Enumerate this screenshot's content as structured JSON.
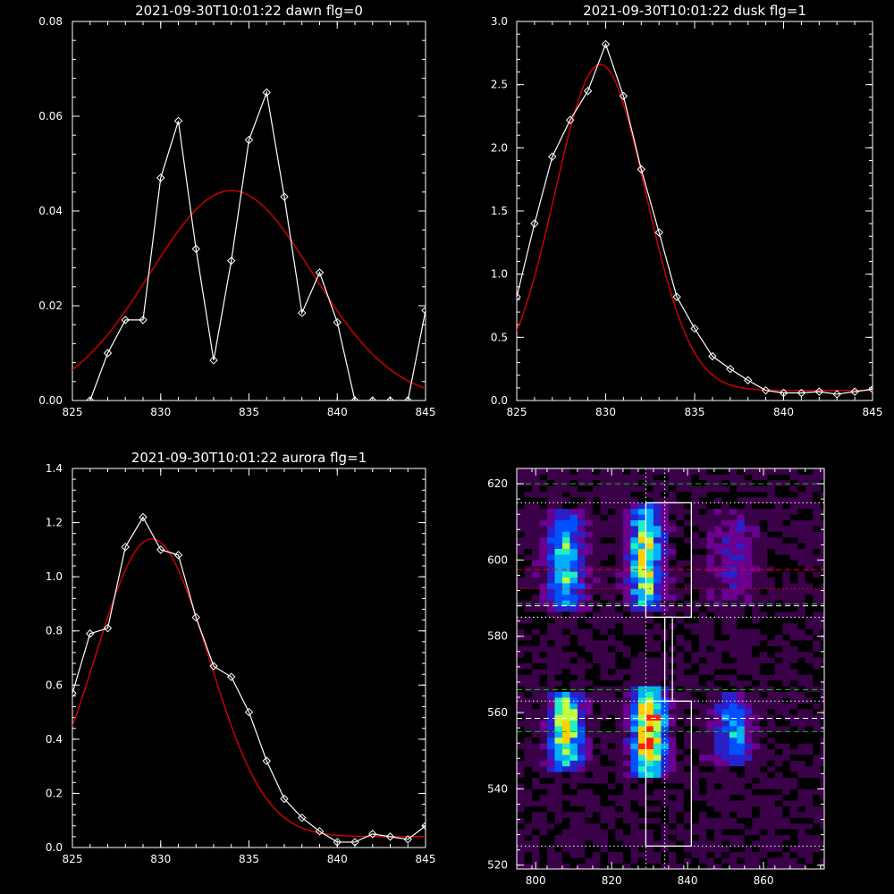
{
  "chart_data": [
    {
      "id": "dawn",
      "type": "line",
      "title": "2021-09-30T10:01:22 dawn flg=0",
      "xlim": [
        825,
        845
      ],
      "ylim": [
        0,
        0.08
      ],
      "xticks": [
        825,
        830,
        835,
        840,
        845
      ],
      "xtick_labels": [
        "825",
        "830",
        "835",
        "840",
        "845"
      ],
      "yticks": [
        0,
        0.02,
        0.04,
        0.06,
        0.08
      ],
      "ytick_labels": [
        "0.00",
        "0.02",
        "0.04",
        "0.06",
        "0.08"
      ],
      "x": [
        826,
        827,
        828,
        829,
        830,
        831,
        832,
        833,
        834,
        835,
        836,
        837,
        838,
        839,
        840,
        841,
        842,
        843,
        844,
        845
      ],
      "y": [
        0.0,
        0.01,
        0.017,
        0.017,
        0.047,
        0.059,
        0.032,
        0.0085,
        0.0295,
        0.055,
        0.065,
        0.043,
        0.0185,
        0.027,
        0.0165,
        0.0,
        0.0,
        0.0,
        0.0,
        0.019
      ],
      "fit": {
        "amplitude": 0.0443,
        "center": 834.0,
        "sigma": 4.6
      },
      "colors": {
        "data": "#ffffff",
        "fit": "#d40000"
      }
    },
    {
      "id": "dusk",
      "type": "line",
      "title": "2021-09-30T10:01:22 dusk flg=1",
      "xlim": [
        825,
        845
      ],
      "ylim": [
        0,
        3.0
      ],
      "xticks": [
        825,
        830,
        835,
        840,
        845
      ],
      "xtick_labels": [
        "825",
        "830",
        "835",
        "840",
        "845"
      ],
      "yticks": [
        0,
        0.5,
        1.0,
        1.5,
        2.0,
        2.5,
        3.0
      ],
      "ytick_labels": [
        "0.0",
        "0.5",
        "1.0",
        "1.5",
        "2.0",
        "2.5",
        "3.0"
      ],
      "x": [
        825,
        826,
        827,
        828,
        829,
        830,
        831,
        832,
        833,
        834,
        835,
        836,
        837,
        838,
        839,
        840,
        841,
        842,
        843,
        844,
        845
      ],
      "y": [
        0.82,
        1.4,
        1.93,
        2.22,
        2.45,
        2.82,
        2.41,
        1.83,
        1.33,
        0.82,
        0.57,
        0.35,
        0.25,
        0.16,
        0.08,
        0.06,
        0.06,
        0.07,
        0.05,
        0.07,
        0.09
      ],
      "fit": {
        "amplitude": 2.58,
        "center": 829.7,
        "sigma": 2.55,
        "offset": 0.08
      },
      "colors": {
        "data": "#ffffff",
        "fit": "#d40000"
      }
    },
    {
      "id": "aurora",
      "type": "line",
      "title": "2021-09-30T10:01:22 aurora flg=1",
      "xlim": [
        825,
        845
      ],
      "ylim": [
        0,
        1.4
      ],
      "xticks": [
        825,
        830,
        835,
        840,
        845
      ],
      "xtick_labels": [
        "825",
        "830",
        "835",
        "840",
        "845"
      ],
      "yticks": [
        0,
        0.2,
        0.4,
        0.6,
        0.8,
        1.0,
        1.2,
        1.4
      ],
      "ytick_labels": [
        "0.0",
        "0.2",
        "0.4",
        "0.6",
        "0.8",
        "1.0",
        "1.2",
        "1.4"
      ],
      "x": [
        825,
        826,
        827,
        828,
        829,
        830,
        831,
        832,
        833,
        834,
        835,
        836,
        837,
        838,
        839,
        840,
        841,
        842,
        843,
        844,
        845
      ],
      "y": [
        0.57,
        0.79,
        0.81,
        1.11,
        1.22,
        1.1,
        1.08,
        0.85,
        0.67,
        0.63,
        0.5,
        0.32,
        0.18,
        0.11,
        0.06,
        0.02,
        0.02,
        0.05,
        0.04,
        0.03,
        0.08
      ],
      "fit": {
        "amplitude": 1.1,
        "center": 829.5,
        "sigma": 3.2,
        "offset": 0.04
      },
      "colors": {
        "data": "#ffffff",
        "fit": "#d40000"
      }
    },
    {
      "id": "spectral-image",
      "type": "heatmap",
      "title": "",
      "xlim": [
        795,
        876
      ],
      "ylim": [
        519,
        624
      ],
      "xticks": [
        800,
        820,
        840,
        860
      ],
      "xtick_labels": [
        "800",
        "820",
        "840",
        "860"
      ],
      "yticks": [
        520,
        540,
        560,
        580,
        600,
        620
      ],
      "ytick_labels": [
        "520",
        "540",
        "560",
        "580",
        "600",
        "620"
      ],
      "colormap": [
        "#000000",
        "#3a0048",
        "#6a0090",
        "#2a20c8",
        "#0050ff",
        "#00b0ff",
        "#20f0c0",
        "#c0ff40",
        "#ffd000",
        "#ff2000"
      ],
      "emission_columns": [
        {
          "x_center": 808,
          "x_width": 3.5,
          "y_from": 586,
          "y_to": 613,
          "peak": 0.55
        },
        {
          "x_center": 829,
          "x_width": 3.0,
          "y_from": 586,
          "y_to": 615,
          "peak": 0.72
        },
        {
          "x_center": 852,
          "x_width": 4.0,
          "y_from": 588,
          "y_to": 613,
          "peak": 0.22
        },
        {
          "x_center": 808,
          "x_width": 3.0,
          "y_from": 545,
          "y_to": 566,
          "peak": 0.78
        },
        {
          "x_center": 830,
          "x_width": 3.0,
          "y_from": 543,
          "y_to": 567,
          "peak": 1.0
        },
        {
          "x_center": 852,
          "x_width": 3.5,
          "y_from": 546,
          "y_to": 565,
          "peak": 0.42
        }
      ],
      "boxes": [
        {
          "x1": 829,
          "x2": 841,
          "y1": 585,
          "y2": 615
        },
        {
          "x1": 834,
          "x2": 836,
          "y1": 563,
          "y2": 585
        },
        {
          "x1": 829,
          "x2": 841,
          "y1": 525,
          "y2": 563
        }
      ],
      "vlines": [
        {
          "x": 829,
          "style": "dotted",
          "color": "#ffffff"
        },
        {
          "x": 834,
          "style": "dotted",
          "color": "#ffffff"
        }
      ],
      "hlines": [
        {
          "y": 620,
          "style": "dashed",
          "color": "#00c800"
        },
        {
          "y": 615,
          "style": "dotted",
          "color": "#ffffff"
        },
        {
          "y": 597.5,
          "style": "dashed",
          "color": "#ff0000"
        },
        {
          "y": 592.5,
          "style": "dotted",
          "color": "#ff0000"
        },
        {
          "y": 588.5,
          "style": "dashed",
          "color": "#00c800"
        },
        {
          "y": 588,
          "style": "dashed",
          "color": "#ffffff"
        },
        {
          "y": 585,
          "style": "dotted",
          "color": "#ffffff"
        },
        {
          "y": 566,
          "style": "dashed",
          "color": "#00c800"
        },
        {
          "y": 563,
          "style": "dotted",
          "color": "#ffffff"
        },
        {
          "y": 558.5,
          "style": "dashed",
          "color": "#ffffff"
        },
        {
          "y": 555,
          "style": "dashed",
          "color": "#00c800"
        },
        {
          "y": 525,
          "style": "dotted",
          "color": "#ffffff"
        }
      ]
    }
  ]
}
